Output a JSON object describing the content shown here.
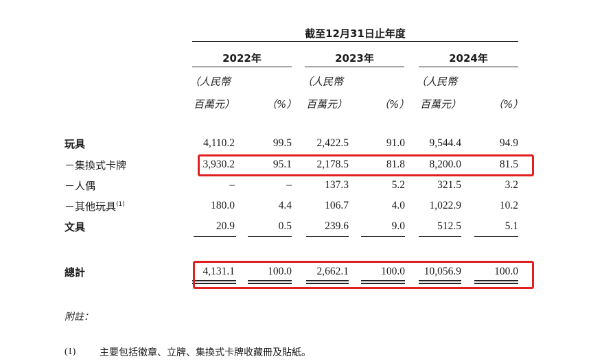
{
  "header": {
    "period": "截至12月31日止年度",
    "years": [
      "2022年",
      "2023年",
      "2024年"
    ],
    "unit_line1": "（人民幣",
    "unit_line2": "百萬元）",
    "pct": "（%）"
  },
  "rows": [
    {
      "label": "玩具",
      "values": [
        "4,110.2",
        "99.5",
        "2,422.5",
        "91.0",
        "9,544.4",
        "94.9"
      ]
    },
    {
      "label": "－集換式卡牌",
      "values": [
        "3,930.2",
        "95.1",
        "2,178.5",
        "81.8",
        "8,200.0",
        "81.5"
      ]
    },
    {
      "label": "－人偶",
      "values": [
        "–",
        "–",
        "137.3",
        "5.2",
        "321.5",
        "3.2"
      ]
    },
    {
      "label": "－其他玩具",
      "footnote_ref": "(1)",
      "values": [
        "180.0",
        "4.4",
        "106.7",
        "4.0",
        "1,022.9",
        "10.2"
      ]
    },
    {
      "label": "文具",
      "values": [
        "20.9",
        "0.5",
        "239.6",
        "9.0",
        "512.5",
        "5.1"
      ]
    }
  ],
  "total": {
    "label": "總計",
    "values": [
      "4,131.1",
      "100.0",
      "2,662.1",
      "100.0",
      "10,056.9",
      "100.0"
    ]
  },
  "notes": {
    "heading": "附註：",
    "items": [
      {
        "marker": "(1)",
        "text": "主要包括徽章、立牌、集換式卡牌收藏冊及貼紙。"
      }
    ]
  },
  "highlight_color": "#e02020"
}
